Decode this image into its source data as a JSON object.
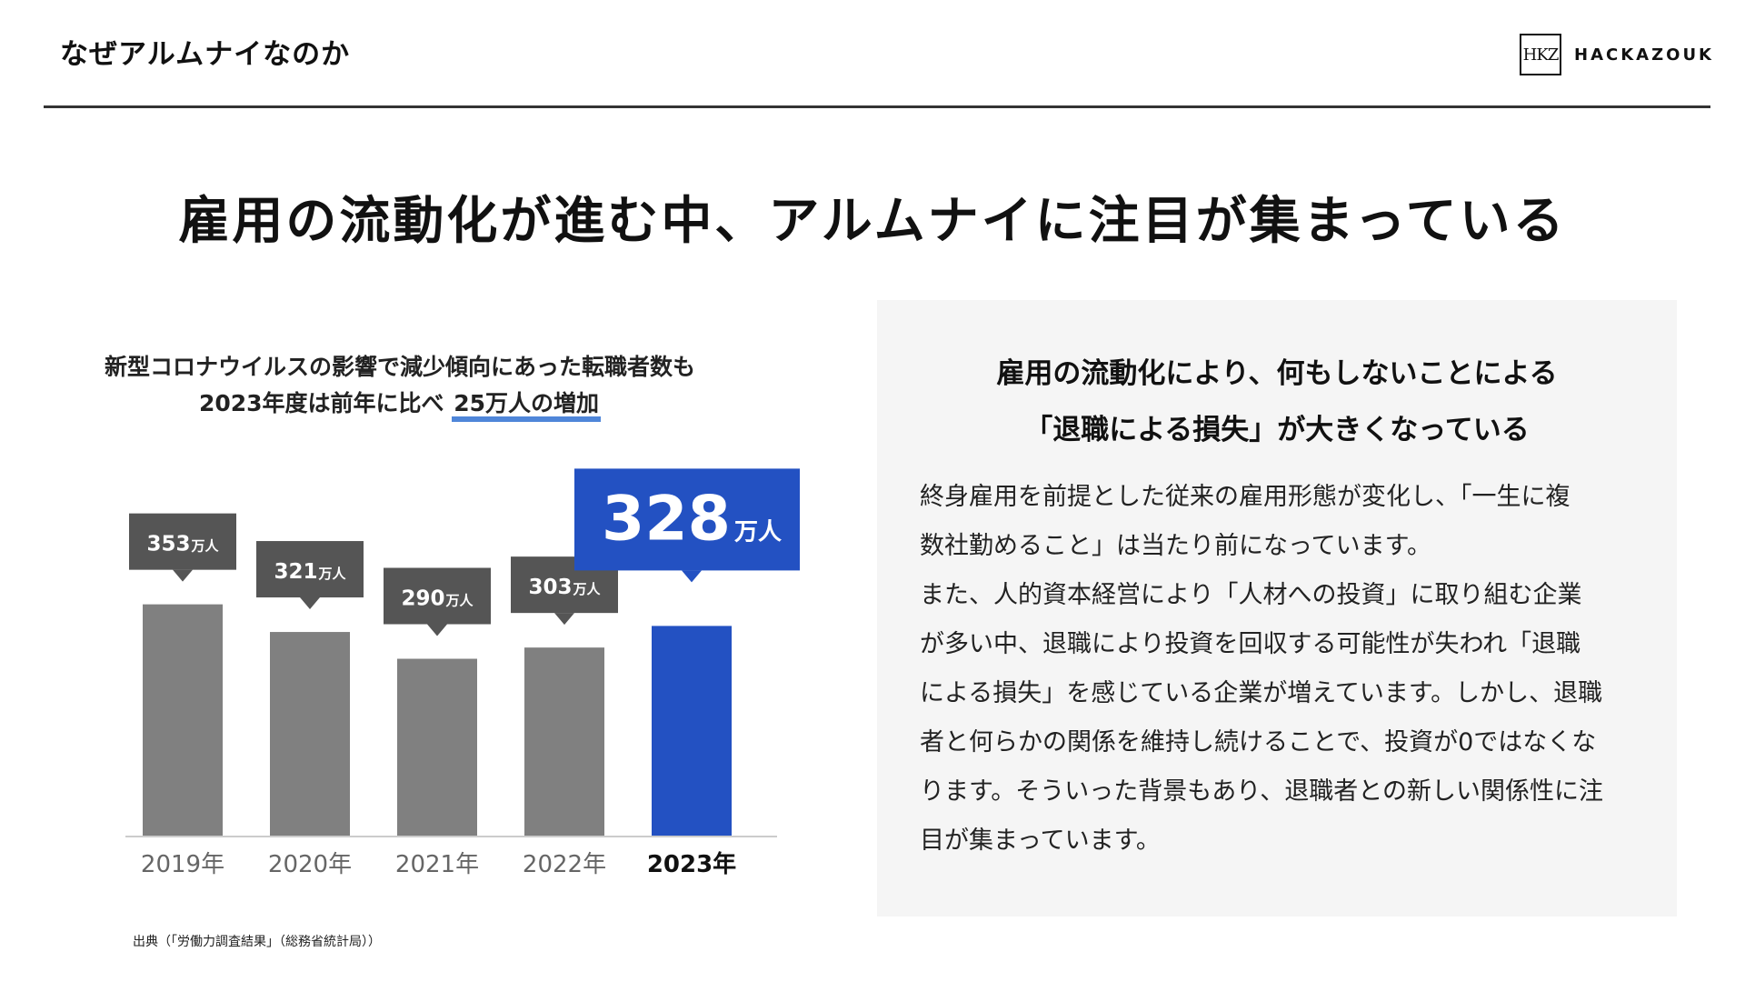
{
  "header": {
    "title": "なぜアルムナイなのか",
    "logo_mark": "HKZ",
    "logo_text": "HACKAZOUK"
  },
  "headline": "雇用の流動化が進む中、アルムナイに注目が集まっている",
  "chart_section": {
    "subtitle_line1": "新型コロナウイルスの影響で減少傾向にあった転職者数も",
    "subtitle_line2_prefix": "2023年度は前年に比べ ",
    "subtitle_line2_highlight": "25万人の増加",
    "source": "出典（「労働力調査結果」（総務省統計局））"
  },
  "chart_data": {
    "type": "bar",
    "categories": [
      "2019年",
      "2020年",
      "2021年",
      "2022年",
      "2023年"
    ],
    "values": [
      353,
      321,
      290,
      303,
      328
    ],
    "unit_label": "万人",
    "highlight_index": 4,
    "ylim": [
      200,
      360
    ],
    "colors": {
      "bar": "#808080",
      "highlight": "#2351c2",
      "label_box": "#555555",
      "axis": "#cccccc"
    }
  },
  "panel": {
    "title_line1": "雇用の流動化により、何もしないことによる",
    "title_line2": "「退職による損失」が大きくなっている",
    "body": [
      "終身雇用を前提とした従来の雇用形態が変化し、「一生に複",
      "数社勤めること」は当たり前になっています。",
      "また、人的資本経営により「人材への投資」に取り組む企業",
      "が多い中、退職により投資を回収する可能性が失われ「退職",
      "による損失」を感じている企業が増えています。しかし、退職",
      "者と何らかの関係を維持し続けることで、投資が0ではなくな",
      "ります。そういった背景もあり、退職者との新しい関係性に注",
      "目が集まっています。"
    ]
  }
}
